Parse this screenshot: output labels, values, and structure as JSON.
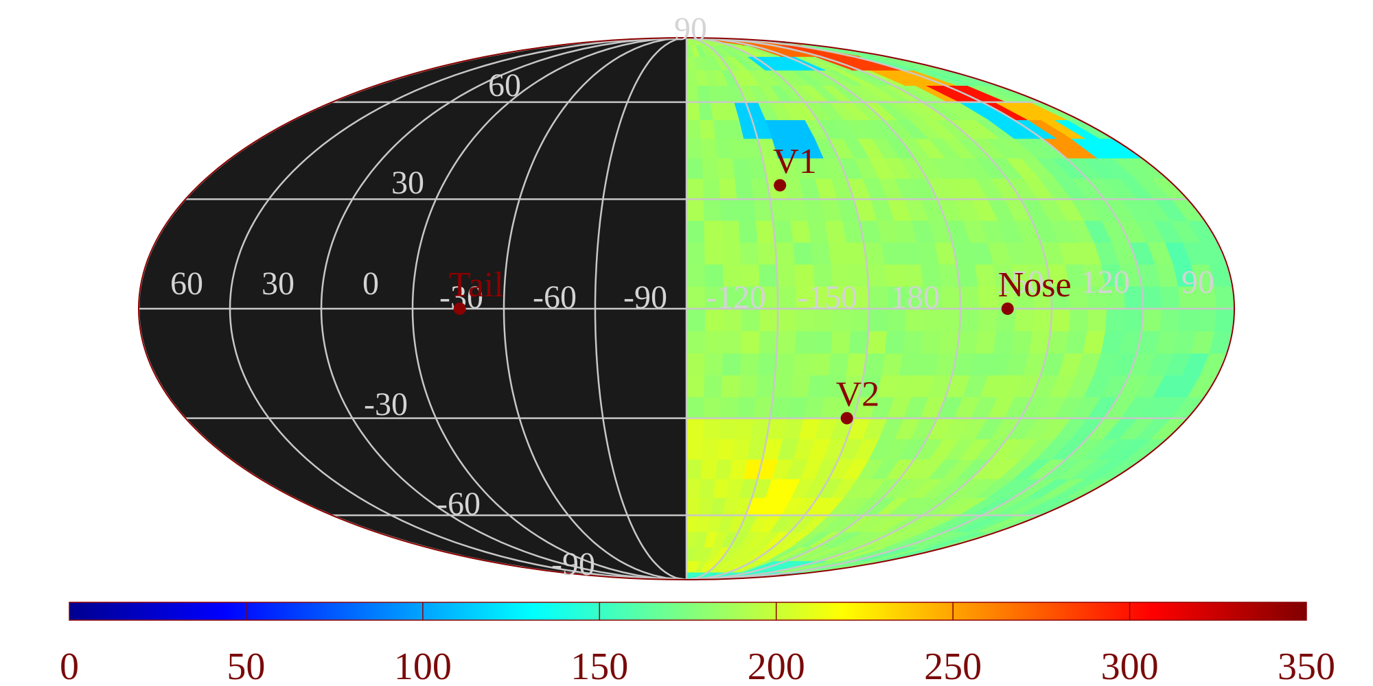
{
  "map": {
    "projection": "mollweide",
    "background_color": "#1a1a1a",
    "grid_color": "#c8c8c8",
    "outline_color": "#8b0000",
    "marker_color": "#8b0000",
    "center_longitude": 0,
    "data_region_longitude_range": [
      -180,
      0
    ],
    "longitude_lines": [
      -180,
      -150,
      -120,
      -90,
      -60,
      -30,
      0,
      30,
      60,
      90,
      120,
      150,
      180
    ],
    "latitude_lines": [
      -60,
      -30,
      0,
      30,
      60
    ],
    "equator_labels": [
      "60",
      "30",
      "0",
      "-30",
      "-60",
      "-90",
      "-120",
      "-150",
      "180",
      "150",
      "120",
      "90"
    ],
    "latitude_labels": [
      "90",
      "60",
      "30",
      "-30",
      "-60",
      "-90"
    ]
  },
  "markers": [
    {
      "name": "V1",
      "lon": -34.5,
      "lat": 34
    },
    {
      "name": "Nose",
      "lon": -105.5,
      "lat": 0
    },
    {
      "name": "V2",
      "lon": -57.6,
      "lat": -30
    },
    {
      "name": "Tail",
      "lon": 74.5,
      "lat": 0
    }
  ],
  "colorbar": {
    "min": 0,
    "max": 350,
    "ticks": [
      "0",
      "50",
      "100",
      "150",
      "200",
      "250",
      "300",
      "350"
    ],
    "colormap": "jet"
  },
  "data_field": {
    "typical_value": 185,
    "anomalies": [
      {
        "lon": -120,
        "lat": 82,
        "value": 270
      },
      {
        "lon": -132,
        "lat": 76,
        "value": 285
      },
      {
        "lon": -140,
        "lat": 68,
        "value": 245
      },
      {
        "lon": -150,
        "lat": 60,
        "value": 300
      },
      {
        "lon": -165,
        "lat": 55,
        "value": 240
      },
      {
        "lon": -156,
        "lat": 48,
        "value": 255
      },
      {
        "lon": -145,
        "lat": 52,
        "value": 120
      },
      {
        "lon": -170,
        "lat": 46,
        "value": 130
      },
      {
        "lon": -30,
        "lat": 52,
        "value": 115
      },
      {
        "lon": -45,
        "lat": 48,
        "value": 110
      },
      {
        "lon": -75,
        "lat": 75,
        "value": 120
      },
      {
        "lon": -165,
        "lat": 10,
        "value": 160
      },
      {
        "lon": -170,
        "lat": -20,
        "value": 162
      },
      {
        "lon": -30,
        "lat": -45,
        "value": 222
      },
      {
        "lon": -40,
        "lat": -55,
        "value": 218
      },
      {
        "lon": -100,
        "lat": -85,
        "value": 150
      }
    ]
  }
}
